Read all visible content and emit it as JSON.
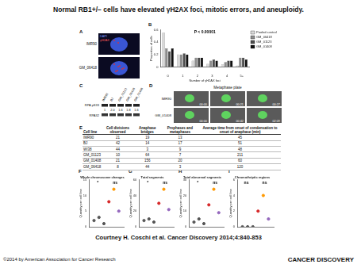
{
  "title": "Normal RB1+/− cells have elevated γH2AX foci, mitotic errors, and aneuploidy.",
  "panels": {
    "A": {
      "letter": "A",
      "rows": [
        "IMR90",
        "GM_06418"
      ],
      "channels": [
        "DAPI",
        "γH2AX"
      ]
    },
    "C": {
      "letter": "C",
      "lanes": [
        "IMR90",
        "BJ",
        "GM_01123",
        "GM_06418",
        "GM_01408"
      ],
      "bands": [
        "RPA pS33",
        "RPA32"
      ],
      "ratios": [
        "1",
        "2.0",
        "1.6",
        "1.8",
        "1.6"
      ]
    },
    "D": {
      "letter": "D",
      "label": "Metaphase plate",
      "rows": [
        {
          "name": "IMR90",
          "times": [
            "00:00",
            "00:21",
            "00:27"
          ]
        },
        {
          "name": "GM_01408",
          "times": [
            "00:00",
            "00:42",
            "02:09"
          ]
        }
      ]
    },
    "E": {
      "letter": "E",
      "table": {
        "header": [
          "Cell line",
          "Cell divisions observed",
          "Anaphase bridges",
          "Prophases and metaphases",
          "Average time from onset of condensation to onset of anaphase (min)"
        ],
        "rows": [
          [
            "IMR90",
            "21",
            "19",
            "13",
            "45"
          ],
          [
            "BJ",
            "42",
            "14",
            "17",
            "51"
          ],
          [
            "WI38",
            "44",
            "3",
            "9",
            "48"
          ],
          [
            "GM_01123",
            "10",
            "64",
            "7",
            "211"
          ],
          [
            "GM_01408",
            "21",
            "156",
            "20",
            "60"
          ],
          [
            "GM_06418",
            "8",
            "44",
            "3",
            "120"
          ]
        ]
      }
    }
  },
  "chart_data": [
    {
      "panel": "B",
      "type": "bar",
      "xlabel": "Number of γH2AX foci",
      "ylabel": "Proportion of cells",
      "categories": [
        "0",
        "1",
        "2",
        "3",
        "4",
        "5+"
      ],
      "series": [
        {
          "name": "Pooled control",
          "color": "#d9d9d9",
          "values": [
            0.55,
            0.2,
            0.1,
            0.05,
            0.04,
            0.02
          ]
        },
        {
          "name": "GM_06418",
          "color": "#8c8c8c",
          "values": [
            0.3,
            0.2,
            0.15,
            0.1,
            0.08,
            0.15
          ]
        },
        {
          "name": "GM_01123",
          "color": "#4d4d4d",
          "values": [
            0.25,
            0.22,
            0.15,
            0.12,
            0.1,
            0.15
          ]
        },
        {
          "name": "GM_01408",
          "color": "#111111",
          "values": [
            0.3,
            0.2,
            0.15,
            0.1,
            0.1,
            0.12
          ]
        }
      ],
      "ylim": [
        0,
        0.6
      ],
      "yticks": [
        0,
        0.2,
        0.4,
        0.6
      ],
      "grid": false,
      "legend": "upper right",
      "annotations": [
        "P < 0.00001"
      ]
    },
    {
      "panel": "F",
      "type": "scatter",
      "title": "Whole chromosome changes",
      "ylabel": "Quantity per cell line",
      "x": [
        1,
        2,
        3,
        4,
        5,
        6
      ],
      "values": [
        2,
        3,
        1,
        8,
        12,
        5
      ],
      "colors": [
        "#555555",
        "#555555",
        "#555555",
        "#d62728",
        "#ff9900",
        "#9467bd"
      ],
      "xlim": [
        0,
        7
      ],
      "ylim": [
        0,
        15
      ],
      "yticks": [
        0,
        5,
        10,
        15
      ],
      "tick_labels": "y",
      "grid": false,
      "marker": "circle",
      "annotations": [
        "*",
        "ns"
      ]
    },
    {
      "panel": "G",
      "type": "scatter",
      "title": "Total segments",
      "ylabel": "Quantity per cell line",
      "x": [
        1,
        2,
        3,
        4,
        5,
        6
      ],
      "values": [
        8,
        10,
        6,
        30,
        48,
        22
      ],
      "colors": [
        "#555555",
        "#555555",
        "#555555",
        "#d62728",
        "#ff9900",
        "#9467bd"
      ],
      "xlim": [
        0,
        7
      ],
      "ylim": [
        0,
        60
      ],
      "yticks": [
        0,
        20,
        40,
        60
      ],
      "tick_labels": "y",
      "grid": false,
      "marker": "circle",
      "annotations": [
        "*",
        "ns"
      ]
    },
    {
      "panel": "H",
      "type": "scatter",
      "title": "Total abnormal segments",
      "ylabel": "Quantity per cell line",
      "x": [
        1,
        2,
        3,
        4,
        5,
        6
      ],
      "values": [
        3,
        5,
        2,
        14,
        24,
        9
      ],
      "colors": [
        "#555555",
        "#555555",
        "#555555",
        "#d62728",
        "#ff9900",
        "#9467bd"
      ],
      "xlim": [
        0,
        7
      ],
      "ylim": [
        0,
        30
      ],
      "yticks": [
        0,
        10,
        20,
        30
      ],
      "tick_labels": "y",
      "grid": false,
      "marker": "circle",
      "annotations": [
        "*",
        "ns"
      ]
    },
    {
      "panel": "I",
      "type": "scatter",
      "title": "Chromothriptic regions",
      "ylabel": "Quantity per cell line",
      "x": [
        1,
        2,
        3,
        4,
        5,
        6
      ],
      "values": [
        0,
        0,
        0,
        2,
        4,
        1
      ],
      "colors": [
        "#555555",
        "#555555",
        "#555555",
        "#d62728",
        "#ff9900",
        "#9467bd"
      ],
      "xlim": [
        0,
        7
      ],
      "ylim": [
        0,
        6
      ],
      "yticks": [
        0,
        2,
        4,
        6
      ],
      "tick_labels": "y",
      "grid": false,
      "marker": "circle",
      "annotations": [
        "ns",
        "ns"
      ]
    }
  ],
  "footer": {
    "citation": "Courtney H. Coschi et al. Cancer Discovery 2014;4:840-853",
    "copyright": "©2014 by American Association for Cancer Research",
    "journal": "CANCER DISCOVERY"
  }
}
